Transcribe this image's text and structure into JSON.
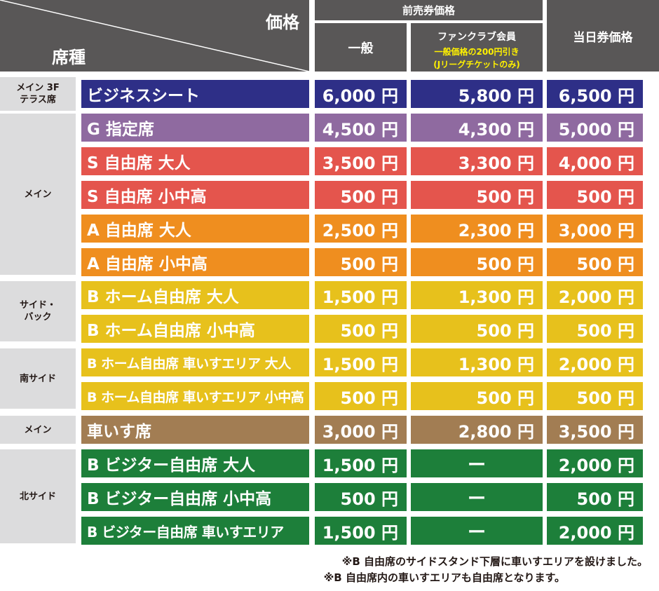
{
  "header": {
    "price_label": "価格",
    "seat_type_label": "席種",
    "advance_label": "前売券価格",
    "general_label": "一般",
    "fanclub_label": "ファンクラブ会員",
    "fanclub_note1": "一般価格の200円引き",
    "fanclub_note2": "(Jリーグチケットのみ)",
    "sameday_label": "当日券価格"
  },
  "colors": {
    "header_bg": "#595757",
    "zone_bg": "#dcdcdd",
    "navy": "#2e2f87",
    "purple": "#8f6aa0",
    "red": "#e4554d",
    "orange": "#ef8e1f",
    "yellow": "#e7c11c",
    "brown": "#a27d53",
    "green": "#1d7f3a",
    "fanclub_note": "#fff100"
  },
  "zones": [
    {
      "label": "メイン 3F\nテラス席"
    },
    {
      "label": "メイン"
    },
    {
      "label": "サイド・\nバック"
    },
    {
      "label": "南サイド"
    },
    {
      "label": "メイン"
    },
    {
      "label": "北サイド"
    }
  ],
  "rows": [
    {
      "seat": "ビジネスシート",
      "general": "6,000 円",
      "fanclub": "5,800 円",
      "sameday": "6,500 円",
      "color": "#2e2f87"
    },
    {
      "seat": "G 指定席",
      "general": "4,500 円",
      "fanclub": "4,300 円",
      "sameday": "5,000 円",
      "color": "#8f6aa0"
    },
    {
      "seat": "S 自由席 大人",
      "general": "3,500 円",
      "fanclub": "3,300 円",
      "sameday": "4,000 円",
      "color": "#e4554d"
    },
    {
      "seat": "S 自由席 小中高",
      "general": "500 円",
      "fanclub": "500 円",
      "sameday": "500 円",
      "color": "#e4554d"
    },
    {
      "seat": "A 自由席 大人",
      "general": "2,500 円",
      "fanclub": "2,300 円",
      "sameday": "3,000 円",
      "color": "#ef8e1f"
    },
    {
      "seat": "A 自由席 小中高",
      "general": "500 円",
      "fanclub": "500 円",
      "sameday": "500 円",
      "color": "#ef8e1f"
    },
    {
      "seat": "B ホーム自由席 大人",
      "general": "1,500 円",
      "fanclub": "1,300 円",
      "sameday": "2,000 円",
      "color": "#e7c11c"
    },
    {
      "seat": "B ホーム自由席 小中高",
      "general": "500 円",
      "fanclub": "500 円",
      "sameday": "500 円",
      "color": "#e7c11c"
    },
    {
      "seat": "B ホーム自由席 車いすエリア 大人",
      "general": "1,500 円",
      "fanclub": "1,300 円",
      "sameday": "2,000 円",
      "color": "#e7c11c"
    },
    {
      "seat": "B ホーム自由席 車いすエリア 小中高",
      "general": "500 円",
      "fanclub": "500 円",
      "sameday": "500 円",
      "color": "#e7c11c"
    },
    {
      "seat": "車いす席",
      "general": "3,000 円",
      "fanclub": "2,800 円",
      "sameday": "3,500 円",
      "color": "#a27d53"
    },
    {
      "seat": "B ビジター自由席 大人",
      "general": "1,500 円",
      "fanclub": "ー",
      "sameday": "2,000 円",
      "color": "#1d7f3a"
    },
    {
      "seat": "B ビジター自由席 小中高",
      "general": "500 円",
      "fanclub": "ー",
      "sameday": "500 円",
      "color": "#1d7f3a"
    },
    {
      "seat": "B ビジター自由席 車いすエリア",
      "general": "1,500 円",
      "fanclub": "ー",
      "sameday": "2,000 円",
      "color": "#1d7f3a"
    }
  ],
  "notes": [
    "※B 自由席のサイドスタンド下層に車いすエリアを設けました。",
    "※B 自由席内の車いすエリアも自由席となります。"
  ]
}
